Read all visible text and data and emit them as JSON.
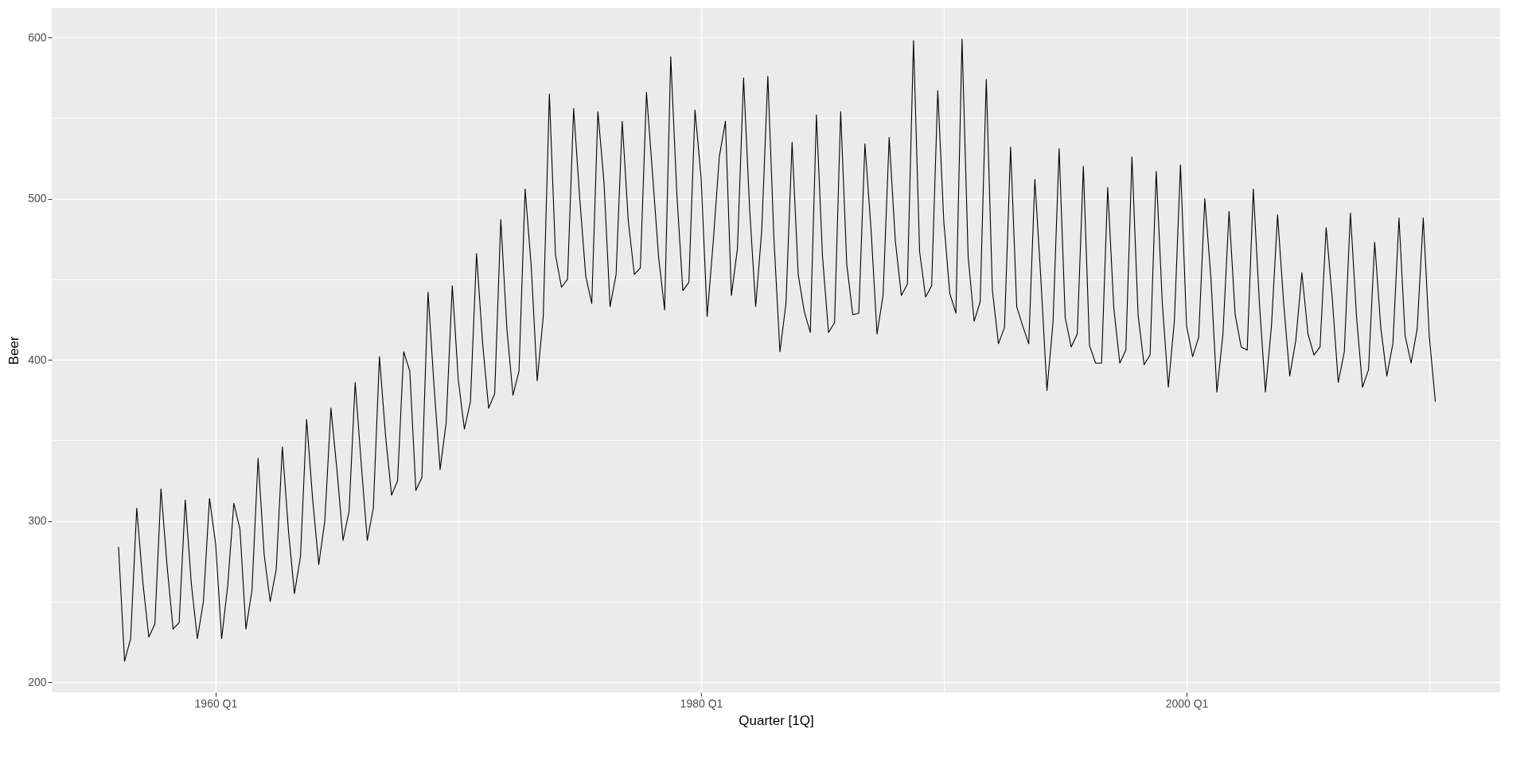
{
  "chart_data": {
    "type": "line",
    "xlabel": "Quarter [1Q]",
    "ylabel": "Beer",
    "grid": true,
    "x": [
      "1956-01",
      "1956-04",
      "1956-07",
      "1956-10",
      "1957-01",
      "1957-04",
      "1957-07",
      "1957-10",
      "1958-01",
      "1958-04",
      "1958-07",
      "1958-10",
      "1959-01",
      "1959-04",
      "1959-07",
      "1959-10",
      "1960-01",
      "1960-04",
      "1960-07",
      "1960-10",
      "1961-01",
      "1961-04",
      "1961-07",
      "1961-10",
      "1962-01",
      "1962-04",
      "1962-07",
      "1962-10",
      "1963-01",
      "1963-04",
      "1963-07",
      "1963-10",
      "1964-01",
      "1964-04",
      "1964-07",
      "1964-10",
      "1965-01",
      "1965-04",
      "1965-07",
      "1965-10",
      "1966-01",
      "1966-04",
      "1966-07",
      "1966-10",
      "1967-01",
      "1967-04",
      "1967-07",
      "1967-10",
      "1968-01",
      "1968-04",
      "1968-07",
      "1968-10",
      "1969-01",
      "1969-04",
      "1969-07",
      "1969-10",
      "1970-01",
      "1970-04",
      "1970-07",
      "1970-10",
      "1971-01",
      "1971-04",
      "1971-07",
      "1971-10",
      "1972-01",
      "1972-04",
      "1972-07",
      "1972-10",
      "1973-01",
      "1973-04",
      "1973-07",
      "1973-10",
      "1974-01",
      "1974-04",
      "1974-07",
      "1974-10",
      "1975-01",
      "1975-04",
      "1975-07",
      "1975-10",
      "1976-01",
      "1976-04",
      "1976-07",
      "1976-10",
      "1977-01",
      "1977-04",
      "1977-07",
      "1977-10",
      "1978-01",
      "1978-04",
      "1978-07",
      "1978-10",
      "1979-01",
      "1979-04",
      "1979-07",
      "1979-10",
      "1980-01",
      "1980-04",
      "1980-07",
      "1980-10",
      "1981-01",
      "1981-04",
      "1981-07",
      "1981-10",
      "1982-01",
      "1982-04",
      "1982-07",
      "1982-10",
      "1983-01",
      "1983-04",
      "1983-07",
      "1983-10",
      "1984-01",
      "1984-04",
      "1984-07",
      "1984-10",
      "1985-01",
      "1985-04",
      "1985-07",
      "1985-10",
      "1986-01",
      "1986-04",
      "1986-07",
      "1986-10",
      "1987-01",
      "1987-04",
      "1987-07",
      "1987-10",
      "1988-01",
      "1988-04",
      "1988-07",
      "1988-10",
      "1989-01",
      "1989-04",
      "1989-07",
      "1989-10",
      "1990-01",
      "1990-04",
      "1990-07",
      "1990-10",
      "1991-01",
      "1991-04",
      "1991-07",
      "1991-10",
      "1992-01",
      "1992-04",
      "1992-07",
      "1992-10",
      "1993-01",
      "1993-04",
      "1993-07",
      "1993-10",
      "1994-01",
      "1994-04",
      "1994-07",
      "1994-10",
      "1995-01",
      "1995-04",
      "1995-07",
      "1995-10",
      "1996-01",
      "1996-04",
      "1996-07",
      "1996-10",
      "1997-01",
      "1997-04",
      "1997-07",
      "1997-10",
      "1998-01",
      "1998-04",
      "1998-07",
      "1998-10",
      "1999-01",
      "1999-04",
      "1999-07",
      "1999-10",
      "2000-01",
      "2000-04",
      "2000-07",
      "2000-10",
      "2001-01",
      "2001-04",
      "2001-07",
      "2001-10",
      "2002-01",
      "2002-04",
      "2002-07",
      "2002-10",
      "2003-01",
      "2003-04",
      "2003-07",
      "2003-10",
      "2004-01",
      "2004-04",
      "2004-07",
      "2004-10",
      "2005-01",
      "2005-04",
      "2005-07",
      "2005-10",
      "2006-01",
      "2006-04",
      "2006-07",
      "2006-10",
      "2007-01",
      "2007-04",
      "2007-07",
      "2007-10",
      "2008-01",
      "2008-04",
      "2008-07",
      "2008-10",
      "2009-01",
      "2009-04",
      "2009-07",
      "2009-10",
      "2010-01",
      "2010-04"
    ],
    "series": [
      {
        "color": "#000000",
        "values": [
          284,
          213,
          227,
          308,
          262,
          228,
          236,
          320,
          272,
          233,
          237,
          313,
          261,
          227,
          250,
          314,
          286,
          227,
          260,
          311,
          295,
          233,
          257,
          339,
          279,
          250,
          270,
          346,
          294,
          255,
          278,
          363,
          313,
          273,
          300,
          370,
          331,
          288,
          306,
          386,
          335,
          288,
          308,
          402,
          353,
          316,
          325,
          405,
          393,
          319,
          327,
          442,
          383,
          332,
          361,
          446,
          387,
          357,
          374,
          466,
          410,
          370,
          379,
          487,
          419,
          378,
          393,
          506,
          458,
          387,
          427,
          565,
          465,
          445,
          450,
          556,
          500,
          452,
          435,
          554,
          510,
          433,
          453,
          548,
          486,
          453,
          457,
          566,
          515,
          464,
          431,
          588,
          503,
          443,
          448,
          555,
          513,
          427,
          473,
          526,
          548,
          440,
          469,
          575,
          493,
          433,
          480,
          576,
          475,
          405,
          435,
          535,
          453,
          430,
          417,
          552,
          464,
          417,
          423,
          554,
          459,
          428,
          429,
          534,
          481,
          416,
          440,
          538,
          474,
          440,
          447,
          598,
          467,
          439,
          446,
          567,
          485,
          441,
          429,
          599,
          464,
          424,
          436,
          574,
          443,
          410,
          420,
          532,
          433,
          421,
          410,
          512,
          449,
          381,
          423,
          531,
          426,
          408,
          416,
          520,
          409,
          398,
          398,
          507,
          432,
          398,
          406,
          526,
          428,
          397,
          403,
          517,
          435,
          383,
          424,
          521,
          421,
          402,
          414,
          500,
          451,
          380,
          416,
          492,
          428,
          408,
          406,
          506,
          435,
          380,
          421,
          490,
          435,
          390,
          412,
          454,
          416,
          403,
          408,
          482,
          438,
          386,
          405,
          491,
          427,
          383,
          394,
          473,
          420,
          390,
          410,
          488,
          415,
          398,
          419,
          488,
          414,
          374
        ]
      }
    ],
    "xlim": [
      "1953-04",
      "2012-12"
    ],
    "xticks": [
      {
        "value": "1960-01",
        "label": "1960 Q1"
      },
      {
        "value": "1970-01",
        "label": null
      },
      {
        "value": "1980-01",
        "label": "1980 Q1"
      },
      {
        "value": "1990-01",
        "label": null
      },
      {
        "value": "2000-01",
        "label": "2000 Q1"
      },
      {
        "value": "2010-01",
        "label": null
      }
    ],
    "ylim": [
      193.7,
      618.3
    ],
    "yticks": [
      200,
      {
        "value": 250,
        "label": null
      },
      300,
      {
        "value": 350,
        "label": null
      },
      400,
      {
        "value": 450,
        "label": null
      },
      500,
      {
        "value": 550,
        "label": null
      },
      600
    ]
  }
}
